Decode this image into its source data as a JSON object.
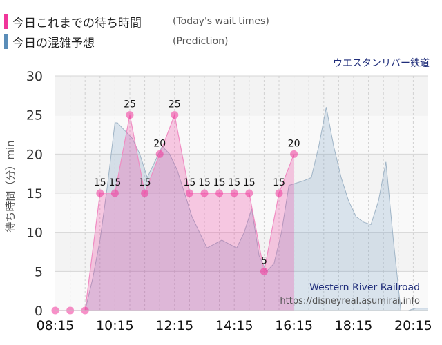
{
  "legend": {
    "today_label": "今日これまでの待ち時間",
    "today_en": "(Today's wait times)",
    "pred_label": "今日の混雑予想",
    "pred_en": "(Prediction)"
  },
  "attraction_name": "ウエスタンリバー鉄道",
  "watermark": {
    "title": "Western River Railroad",
    "url": "https://disneyreal.asumirai.info"
  },
  "colors": {
    "today": "#f0359a",
    "prediction": "#5a8db8"
  },
  "chart_data": {
    "type": "area",
    "xlabel": "",
    "ylabel": "待ち時間（分）min",
    "ylim": [
      0,
      30
    ],
    "yticks": [
      0,
      5,
      10,
      15,
      20,
      25,
      30
    ],
    "xlim": [
      "08:15",
      "20:45"
    ],
    "xticks": [
      "08:15",
      "10:15",
      "12:15",
      "14:15",
      "16:15",
      "18:15",
      "20:15"
    ],
    "series": [
      {
        "name": "今日これまでの待ち時間",
        "x": [
          "08:15",
          "08:45",
          "09:15",
          "09:45",
          "10:15",
          "10:45",
          "11:15",
          "11:45",
          "12:15",
          "12:45",
          "13:15",
          "13:45",
          "14:15",
          "14:45",
          "15:15",
          "15:45",
          "16:15"
        ],
        "values": [
          0,
          0,
          0,
          15,
          15,
          25,
          15,
          20,
          25,
          15,
          15,
          15,
          15,
          15,
          5,
          15,
          20
        ],
        "labels": [
          "",
          "",
          "",
          "15",
          "15",
          "25",
          "15",
          "20",
          "25",
          "15",
          "15",
          "15",
          "15",
          "15",
          "5",
          "15",
          "20"
        ]
      },
      {
        "name": "今日の混雑予想",
        "x": [
          "08:15",
          "09:15",
          "09:30",
          "09:45",
          "10:00",
          "10:15",
          "10:20",
          "10:35",
          "10:50",
          "11:05",
          "11:20",
          "11:35",
          "11:50",
          "12:05",
          "12:20",
          "12:35",
          "12:50",
          "13:05",
          "13:20",
          "13:35",
          "13:50",
          "14:05",
          "14:20",
          "14:35",
          "14:50",
          "15:05",
          "15:20",
          "15:35",
          "15:50",
          "16:05",
          "16:20",
          "16:35",
          "16:50",
          "17:05",
          "17:20",
          "17:35",
          "17:50",
          "18:05",
          "18:20",
          "18:35",
          "18:50",
          "19:05",
          "19:20",
          "19:35",
          "19:50",
          "20:05",
          "20:20",
          "20:45"
        ],
        "values": [
          0,
          0,
          4,
          9,
          16,
          24,
          24,
          23,
          22,
          20,
          17,
          19,
          21,
          20,
          18,
          15,
          12,
          10,
          8,
          8.5,
          9,
          8.5,
          8,
          10,
          13,
          7,
          5,
          6,
          10,
          16,
          16.3,
          16.6,
          17,
          21,
          26,
          21,
          17,
          14,
          12,
          11.3,
          11,
          14,
          19,
          9,
          0,
          0,
          0.3,
          0.3
        ]
      }
    ]
  }
}
